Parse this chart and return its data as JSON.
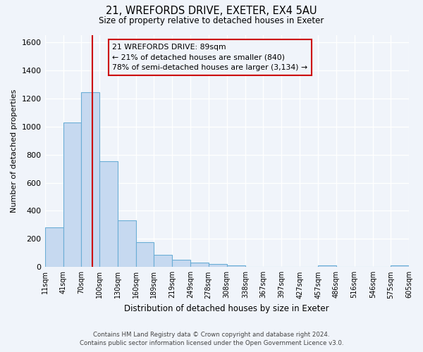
{
  "title_line1": "21, WREFORDS DRIVE, EXETER, EX4 5AU",
  "title_line2": "Size of property relative to detached houses in Exeter",
  "xlabel": "Distribution of detached houses by size in Exeter",
  "ylabel": "Number of detached properties",
  "bin_edges": [
    11,
    41,
    70,
    100,
    130,
    160,
    189,
    219,
    249,
    278,
    308,
    338,
    367,
    397,
    427,
    457,
    486,
    516,
    546,
    575,
    605
  ],
  "bin_labels": [
    "11sqm",
    "41sqm",
    "70sqm",
    "100sqm",
    "130sqm",
    "160sqm",
    "189sqm",
    "219sqm",
    "249sqm",
    "278sqm",
    "308sqm",
    "338sqm",
    "367sqm",
    "397sqm",
    "427sqm",
    "457sqm",
    "486sqm",
    "516sqm",
    "546sqm",
    "575sqm",
    "605sqm"
  ],
  "bar_heights": [
    280,
    1030,
    1245,
    755,
    330,
    175,
    85,
    50,
    30,
    20,
    10,
    0,
    0,
    0,
    0,
    10,
    0,
    0,
    0,
    10
  ],
  "bar_color": "#c6d9f0",
  "bar_edge_color": "#6baed6",
  "vline_color": "#cc0000",
  "vline_x": 89,
  "annotation_title": "21 WREFORDS DRIVE: 89sqm",
  "annotation_line2": "← 21% of detached houses are smaller (840)",
  "annotation_line3": "78% of semi-detached houses are larger (3,134) →",
  "ylim": [
    0,
    1650
  ],
  "yticks": [
    0,
    200,
    400,
    600,
    800,
    1000,
    1200,
    1400,
    1600
  ],
  "footer_line1": "Contains HM Land Registry data © Crown copyright and database right 2024.",
  "footer_line2": "Contains public sector information licensed under the Open Government Licence v3.0.",
  "bg_color": "#f0f4fa"
}
